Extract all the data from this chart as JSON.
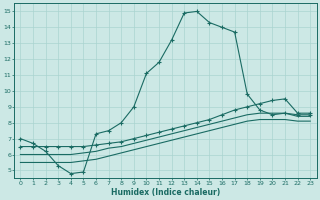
{
  "xlabel": "Humidex (Indice chaleur)",
  "background_color": "#cce8e5",
  "grid_color": "#aad4d0",
  "line_color": "#1a6b63",
  "xlim": [
    -0.5,
    23.5
  ],
  "ylim": [
    4.5,
    15.5
  ],
  "xticks": [
    0,
    1,
    2,
    3,
    4,
    5,
    6,
    7,
    8,
    9,
    10,
    11,
    12,
    13,
    14,
    15,
    16,
    17,
    18,
    19,
    20,
    21,
    22,
    23
  ],
  "yticks": [
    5,
    6,
    7,
    8,
    9,
    10,
    11,
    12,
    13,
    14,
    15
  ],
  "line1_x": [
    0,
    1,
    2,
    3,
    4,
    5,
    6,
    7,
    8,
    9,
    10,
    11,
    12,
    13,
    14,
    15,
    16,
    17,
    18,
    19,
    20,
    21,
    22,
    23
  ],
  "line1_y": [
    7.0,
    6.7,
    6.2,
    5.3,
    4.8,
    4.9,
    7.3,
    7.5,
    8.0,
    9.0,
    11.1,
    11.8,
    13.2,
    14.9,
    15.0,
    14.3,
    14.0,
    13.7,
    9.8,
    8.8,
    8.5,
    8.6,
    8.5,
    8.5
  ],
  "line2_x": [
    0,
    1,
    2,
    3,
    4,
    5,
    6,
    7,
    8,
    9,
    10,
    11,
    12,
    13,
    14,
    15,
    16,
    17,
    18,
    19,
    20,
    21,
    22,
    23
  ],
  "line2_y": [
    6.5,
    6.5,
    6.5,
    6.5,
    6.5,
    6.5,
    6.6,
    6.7,
    6.8,
    7.0,
    7.2,
    7.4,
    7.6,
    7.8,
    8.0,
    8.2,
    8.5,
    8.8,
    9.0,
    9.2,
    9.4,
    9.5,
    8.6,
    8.6
  ],
  "line3_x": [
    0,
    1,
    2,
    3,
    4,
    5,
    6,
    7,
    8,
    9,
    10,
    11,
    12,
    13,
    14,
    15,
    16,
    17,
    18,
    19,
    20,
    21,
    22,
    23
  ],
  "line3_y": [
    6.0,
    6.0,
    6.0,
    6.0,
    6.0,
    6.1,
    6.2,
    6.4,
    6.5,
    6.7,
    6.9,
    7.1,
    7.3,
    7.5,
    7.7,
    7.9,
    8.1,
    8.3,
    8.5,
    8.6,
    8.6,
    8.6,
    8.4,
    8.4
  ],
  "line4_x": [
    0,
    1,
    2,
    3,
    4,
    5,
    6,
    7,
    8,
    9,
    10,
    11,
    12,
    13,
    14,
    15,
    16,
    17,
    18,
    19,
    20,
    21,
    22,
    23
  ],
  "line4_y": [
    5.5,
    5.5,
    5.5,
    5.5,
    5.5,
    5.6,
    5.7,
    5.9,
    6.1,
    6.3,
    6.5,
    6.7,
    6.9,
    7.1,
    7.3,
    7.5,
    7.7,
    7.9,
    8.1,
    8.2,
    8.2,
    8.2,
    8.1,
    8.1
  ]
}
